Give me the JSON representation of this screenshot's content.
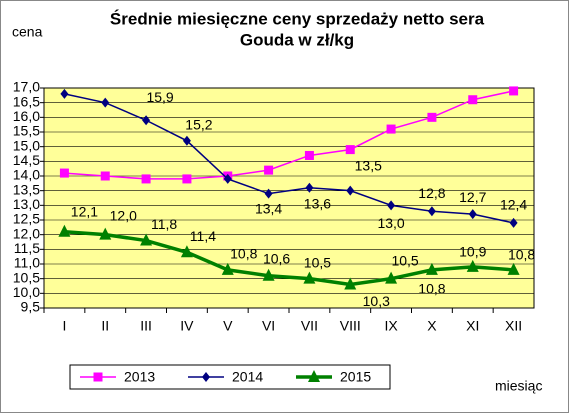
{
  "chart_data": {
    "type": "line",
    "title": [
      "Średnie miesięczne ceny sprzedaży netto sera",
      "Gouda w zł/kg"
    ],
    "y_label": "cena",
    "x_label": "miesiąc",
    "categories": [
      "I",
      "II",
      "III",
      "IV",
      "V",
      "VI",
      "VII",
      "VIII",
      "IX",
      "X",
      "XI",
      "XII"
    ],
    "series": [
      {
        "name": "2013",
        "color": "#ff00ff",
        "marker": "square",
        "values": [
          14.1,
          14.0,
          13.9,
          13.9,
          14.0,
          14.2,
          14.7,
          14.9,
          15.6,
          16.0,
          16.6,
          16.9
        ]
      },
      {
        "name": "2014",
        "color": "#000080",
        "marker": "diamond",
        "values": [
          16.8,
          16.5,
          15.9,
          15.2,
          13.9,
          13.4,
          13.6,
          13.5,
          13.0,
          12.8,
          12.7,
          12.4
        ],
        "value_labels": [
          null,
          null,
          "15,9",
          "15,2",
          null,
          "13,4",
          "13,6",
          "13,5",
          "13,0",
          "12,8",
          "12,7",
          "12,4"
        ]
      },
      {
        "name": "2015",
        "color": "#008000",
        "marker": "triangle",
        "values": [
          12.1,
          12.0,
          11.8,
          11.4,
          10.8,
          10.6,
          10.5,
          10.3,
          10.5,
          10.8,
          10.9,
          10.8
        ],
        "value_labels": [
          "12,1",
          "12,0",
          "11,8",
          "11,4",
          "10,8",
          "10,6",
          "10,5",
          "10,3",
          "10,5",
          "10,8",
          "10,9",
          "10,8"
        ]
      }
    ],
    "ylim": [
      9.5,
      17.0
    ],
    "yticks": [
      {
        "value": 9.5,
        "label": "9,5"
      },
      {
        "value": 10.0,
        "label": "10,0"
      },
      {
        "value": 10.5,
        "label": "10,5"
      },
      {
        "value": 11.0,
        "label": "11,0"
      },
      {
        "value": 11.5,
        "label": "11,5"
      },
      {
        "value": 12.0,
        "label": "12,0"
      },
      {
        "value": 12.5,
        "label": "12,5"
      },
      {
        "value": 13.0,
        "label": "13,0"
      },
      {
        "value": 13.5,
        "label": "13,5"
      },
      {
        "value": 14.0,
        "label": "14,0"
      },
      {
        "value": 14.5,
        "label": "14,5"
      },
      {
        "value": 15.0,
        "label": "15,0"
      },
      {
        "value": 15.5,
        "label": "15,5"
      },
      {
        "value": 16.0,
        "label": "16,0"
      },
      {
        "value": 16.5,
        "label": "16,5"
      },
      {
        "value": 17.0,
        "label": "17,0"
      }
    ],
    "grid": true,
    "legend": "bottom",
    "plot_background": "#ffff99"
  }
}
